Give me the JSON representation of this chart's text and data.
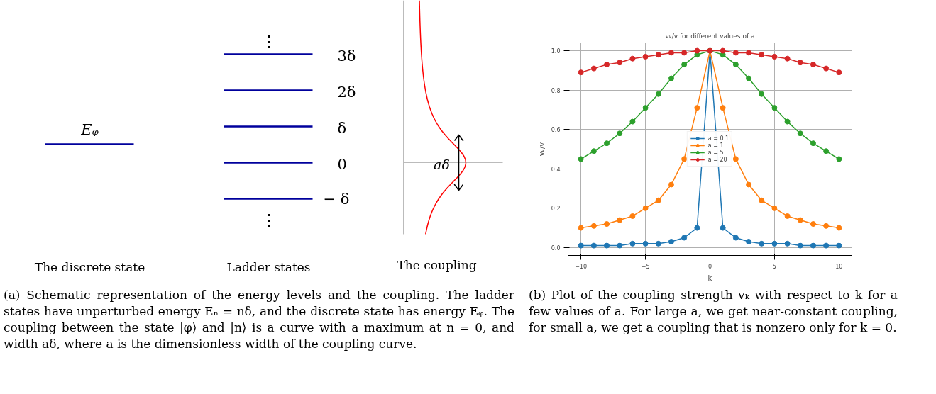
{
  "chart_data": [
    {
      "type": "other",
      "annotations": [
        "⋮",
        "3δ",
        "2δ",
        "δ",
        "0",
        "− δ",
        "⋮",
        "Eᵩ",
        "aδ",
        "The discrete state",
        "Ladder states",
        "The coupling",
        "(a) Schematic representation of the energy levels and the coupling. The ladder states have unperturbed energy Eₙ = nδ, and the discrete state has energy Eᵩ. The coupling between the state |φ⟩ and |n⟩ is a curve with a maximum at n = 0, and width aδ, where a is the dimensionless width of the coupling curve."
      ]
    },
    {
      "type": "line",
      "title": "vₖ/v for different values of a",
      "xlabel": "k",
      "ylabel": "vₖ/v",
      "marker": "circle",
      "grid": true,
      "legend": "center",
      "x": [
        -10,
        -9,
        -8,
        -7,
        -6,
        -5,
        -4,
        -3,
        -2,
        -1,
        0,
        1,
        2,
        3,
        4,
        5,
        6,
        7,
        8,
        9,
        10
      ],
      "xlim": [
        -11,
        11
      ],
      "ylim": [
        -0.04,
        1.04
      ],
      "xticks": [
        -10,
        -5,
        0,
        5,
        10
      ],
      "yticks": [
        {
          "value": 0,
          "label": "0.0"
        },
        {
          "value": 0.2,
          "label": "0.2"
        },
        {
          "value": 0.4,
          "label": "0.4"
        },
        {
          "value": 0.6,
          "label": "0.6"
        },
        {
          "value": 0.8,
          "label": "0.8"
        },
        {
          "value": 1,
          "label": "1.0"
        }
      ],
      "series": [
        {
          "name": "a = 0.1",
          "color": "#1f77b4",
          "values": [
            0.01,
            0.01,
            0.01,
            0.01,
            0.02,
            0.02,
            0.02,
            0.03,
            0.05,
            0.1,
            1,
            0.1,
            0.05,
            0.03,
            0.02,
            0.02,
            0.02,
            0.01,
            0.01,
            0.01,
            0.01
          ]
        },
        {
          "name": "a = 1",
          "color": "#ff7f0e",
          "values": [
            0.1,
            0.11,
            0.12,
            0.14,
            0.16,
            0.2,
            0.24,
            0.32,
            0.45,
            0.71,
            1,
            0.71,
            0.45,
            0.32,
            0.24,
            0.2,
            0.16,
            0.14,
            0.12,
            0.11,
            0.1
          ]
        },
        {
          "name": "a = 5",
          "color": "#2ca02c",
          "values": [
            0.45,
            0.49,
            0.53,
            0.58,
            0.64,
            0.71,
            0.78,
            0.86,
            0.93,
            0.98,
            1,
            0.98,
            0.93,
            0.86,
            0.78,
            0.71,
            0.64,
            0.58,
            0.53,
            0.49,
            0.45
          ]
        },
        {
          "name": "a = 20",
          "color": "#d62728",
          "values": [
            0.89,
            0.91,
            0.93,
            0.94,
            0.96,
            0.97,
            0.98,
            0.99,
            0.99,
            1,
            1,
            1,
            0.99,
            0.99,
            0.98,
            0.97,
            0.96,
            0.94,
            0.93,
            0.91,
            0.89
          ]
        }
      ],
      "annotations": [
        "(b) Plot of the coupling strength vₖ with respect to k for a few values of a. For large a, we get near-constant coupling, for small a, we get a coupling that is nonzero only for k = 0."
      ]
    }
  ]
}
